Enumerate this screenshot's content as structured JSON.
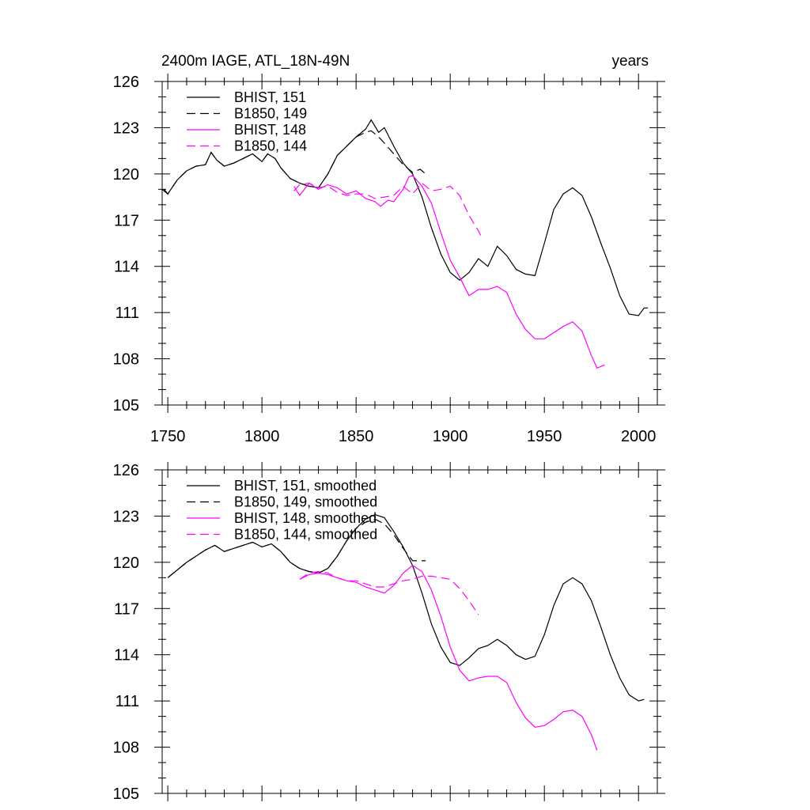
{
  "chart_data": [
    {
      "type": "line",
      "title_left": "2400m IAGE, ATL_18N-49N",
      "title_right": "years",
      "xlim": [
        1747,
        2010
      ],
      "ylim": [
        105,
        126
      ],
      "xticks": [
        1750,
        1800,
        1850,
        1900,
        1950,
        2000
      ],
      "yticks": [
        105,
        108,
        111,
        114,
        117,
        120,
        123,
        126
      ],
      "legend_position": "top-left",
      "series": [
        {
          "name": "BHIST, 151",
          "color": "#000000",
          "dash": "solid",
          "x": [
            1747,
            1750,
            1755,
            1760,
            1765,
            1770,
            1773,
            1776,
            1780,
            1785,
            1790,
            1795,
            1800,
            1803,
            1807,
            1810,
            1815,
            1820,
            1825,
            1830,
            1835,
            1840,
            1845,
            1850,
            1855,
            1858,
            1860,
            1862,
            1865,
            1870,
            1875,
            1880,
            1885,
            1890,
            1895,
            1900,
            1905,
            1910,
            1915,
            1920,
            1925,
            1930,
            1935,
            1940,
            1945,
            1950,
            1955,
            1960,
            1965,
            1970,
            1975,
            1980,
            1985,
            1990,
            1995,
            2000,
            2003,
            2005
          ],
          "y": [
            119.0,
            118.7,
            119.6,
            120.2,
            120.5,
            120.6,
            121.4,
            120.9,
            120.5,
            120.7,
            121.0,
            121.3,
            120.8,
            121.3,
            121.0,
            120.4,
            119.7,
            119.4,
            119.2,
            119.1,
            120.0,
            121.2,
            121.8,
            122.4,
            122.9,
            123.5,
            123.1,
            122.7,
            123.0,
            121.8,
            120.7,
            120.0,
            118.5,
            116.5,
            114.8,
            113.6,
            113.1,
            113.6,
            114.5,
            114.0,
            115.3,
            114.7,
            113.8,
            113.5,
            113.4,
            115.5,
            117.7,
            118.7,
            119.1,
            118.6,
            117.2,
            115.5,
            113.9,
            112.1,
            110.9,
            110.8,
            111.3,
            111.3
          ]
        },
        {
          "name": "B1850, 149",
          "color": "#000000",
          "dash": "dashed",
          "x": [
            1748,
            1750,
            1755,
            1760,
            1765,
            1770,
            1773,
            1776,
            1780,
            1785,
            1790,
            1795,
            1800,
            1803,
            1807,
            1810,
            1815,
            1820,
            1825,
            1830,
            1835,
            1840,
            1845,
            1850,
            1855,
            1858,
            1860,
            1862,
            1865,
            1870,
            1875,
            1880,
            1884,
            1887
          ],
          "y": [
            119.0,
            118.7,
            119.6,
            120.2,
            120.5,
            120.6,
            121.4,
            120.9,
            120.5,
            120.7,
            121.0,
            121.3,
            120.8,
            121.3,
            121.0,
            120.4,
            119.7,
            119.4,
            119.2,
            119.1,
            120.0,
            121.2,
            121.8,
            122.4,
            122.7,
            122.8,
            122.6,
            122.4,
            122.0,
            121.3,
            120.6,
            120.1,
            120.3,
            120.0
          ]
        },
        {
          "name": "BHIST, 148",
          "color": "#ff00ff",
          "dash": "solid",
          "x": [
            1817,
            1820,
            1825,
            1830,
            1835,
            1840,
            1845,
            1850,
            1855,
            1860,
            1863,
            1867,
            1870,
            1875,
            1878,
            1880,
            1885,
            1890,
            1895,
            1900,
            1905,
            1910,
            1915,
            1920,
            1925,
            1930,
            1935,
            1940,
            1945,
            1950,
            1955,
            1960,
            1965,
            1970,
            1975,
            1978,
            1980,
            1982
          ],
          "y": [
            119.2,
            118.6,
            119.4,
            119.0,
            119.3,
            119.1,
            118.7,
            118.9,
            118.4,
            118.2,
            117.9,
            118.3,
            118.2,
            119.0,
            119.8,
            119.9,
            119.2,
            118.1,
            116.2,
            114.4,
            113.3,
            112.1,
            112.5,
            112.5,
            112.7,
            112.3,
            110.9,
            109.9,
            109.3,
            109.3,
            109.7,
            110.1,
            110.4,
            109.8,
            108.2,
            107.4,
            107.5,
            107.6
          ]
        },
        {
          "name": "B1850, 144",
          "color": "#ff00ff",
          "dash": "dashed",
          "x": [
            1817,
            1820,
            1825,
            1830,
            1835,
            1840,
            1845,
            1850,
            1855,
            1860,
            1865,
            1870,
            1875,
            1880,
            1885,
            1890,
            1895,
            1900,
            1905,
            1910,
            1915,
            1917
          ],
          "y": [
            118.9,
            119.3,
            119.4,
            119.1,
            119.2,
            118.8,
            118.6,
            118.7,
            118.7,
            118.4,
            118.5,
            118.6,
            119.2,
            118.7,
            119.4,
            118.9,
            119.0,
            119.2,
            118.6,
            117.3,
            116.3,
            115.8
          ]
        }
      ]
    },
    {
      "type": "line",
      "xlim": [
        1747,
        2010
      ],
      "ylim": [
        105,
        126
      ],
      "xticks": [
        1750,
        1800,
        1850,
        1900,
        1950,
        2000
      ],
      "yticks": [
        105,
        108,
        111,
        114,
        117,
        120,
        123,
        126
      ],
      "legend_position": "top-left",
      "series": [
        {
          "name": "BHIST, 151, smoothed",
          "color": "#000000",
          "dash": "solid",
          "x": [
            1750,
            1755,
            1760,
            1765,
            1770,
            1775,
            1780,
            1785,
            1790,
            1795,
            1800,
            1805,
            1810,
            1815,
            1820,
            1825,
            1830,
            1835,
            1840,
            1845,
            1850,
            1855,
            1860,
            1865,
            1870,
            1875,
            1880,
            1885,
            1890,
            1895,
            1900,
            1905,
            1910,
            1915,
            1920,
            1925,
            1930,
            1935,
            1940,
            1945,
            1950,
            1955,
            1960,
            1965,
            1970,
            1975,
            1980,
            1985,
            1990,
            1995,
            2000,
            2003
          ],
          "y": [
            119.0,
            119.5,
            120.0,
            120.4,
            120.8,
            121.1,
            120.7,
            120.9,
            121.1,
            121.3,
            121.0,
            121.2,
            120.7,
            120.0,
            119.6,
            119.4,
            119.3,
            119.6,
            120.4,
            121.4,
            122.2,
            122.8,
            123.1,
            122.9,
            122.0,
            121.0,
            119.8,
            118.0,
            116.0,
            114.5,
            113.5,
            113.3,
            113.8,
            114.4,
            114.6,
            115.0,
            114.6,
            114.0,
            113.7,
            113.9,
            115.3,
            117.2,
            118.6,
            119.0,
            118.6,
            117.5,
            115.8,
            114.0,
            112.5,
            111.4,
            111.0,
            111.1
          ]
        },
        {
          "name": "B1850, 149, smoothed",
          "color": "#000000",
          "dash": "dashed",
          "x": [
            1750,
            1755,
            1760,
            1765,
            1770,
            1775,
            1780,
            1785,
            1790,
            1795,
            1800,
            1805,
            1810,
            1815,
            1820,
            1825,
            1830,
            1835,
            1840,
            1845,
            1850,
            1855,
            1860,
            1865,
            1870,
            1875,
            1880,
            1885,
            1887
          ],
          "y": [
            119.0,
            119.5,
            120.0,
            120.4,
            120.8,
            121.1,
            120.7,
            120.9,
            121.1,
            121.3,
            121.0,
            121.2,
            120.7,
            120.0,
            119.6,
            119.4,
            119.3,
            119.6,
            120.4,
            121.4,
            122.2,
            122.6,
            122.8,
            122.5,
            121.8,
            120.9,
            120.1,
            120.1,
            120.1
          ]
        },
        {
          "name": "BHIST, 148, smoothed",
          "color": "#ff00ff",
          "dash": "solid",
          "x": [
            1820,
            1825,
            1830,
            1835,
            1840,
            1845,
            1850,
            1855,
            1860,
            1865,
            1870,
            1875,
            1880,
            1885,
            1890,
            1895,
            1900,
            1905,
            1910,
            1915,
            1920,
            1925,
            1930,
            1935,
            1940,
            1945,
            1950,
            1955,
            1960,
            1965,
            1970,
            1975,
            1978
          ],
          "y": [
            118.9,
            119.2,
            119.3,
            119.2,
            119.0,
            118.8,
            118.7,
            118.4,
            118.2,
            118.0,
            118.5,
            119.3,
            119.8,
            119.4,
            118.2,
            116.5,
            114.5,
            113.0,
            112.3,
            112.5,
            112.6,
            112.6,
            112.2,
            110.9,
            109.9,
            109.3,
            109.4,
            109.8,
            110.3,
            110.4,
            110.0,
            108.8,
            107.8
          ]
        },
        {
          "name": "B1850, 144, smoothed",
          "color": "#ff00ff",
          "dash": "dashed",
          "x": [
            1820,
            1825,
            1830,
            1835,
            1840,
            1845,
            1850,
            1855,
            1860,
            1865,
            1870,
            1875,
            1880,
            1885,
            1890,
            1895,
            1900,
            1905,
            1910,
            1915
          ],
          "y": [
            118.9,
            119.3,
            119.4,
            119.3,
            119.0,
            118.8,
            118.8,
            118.6,
            118.4,
            118.4,
            118.6,
            118.8,
            118.9,
            119.1,
            119.1,
            119.0,
            118.9,
            118.3,
            117.5,
            116.6
          ]
        }
      ]
    }
  ]
}
